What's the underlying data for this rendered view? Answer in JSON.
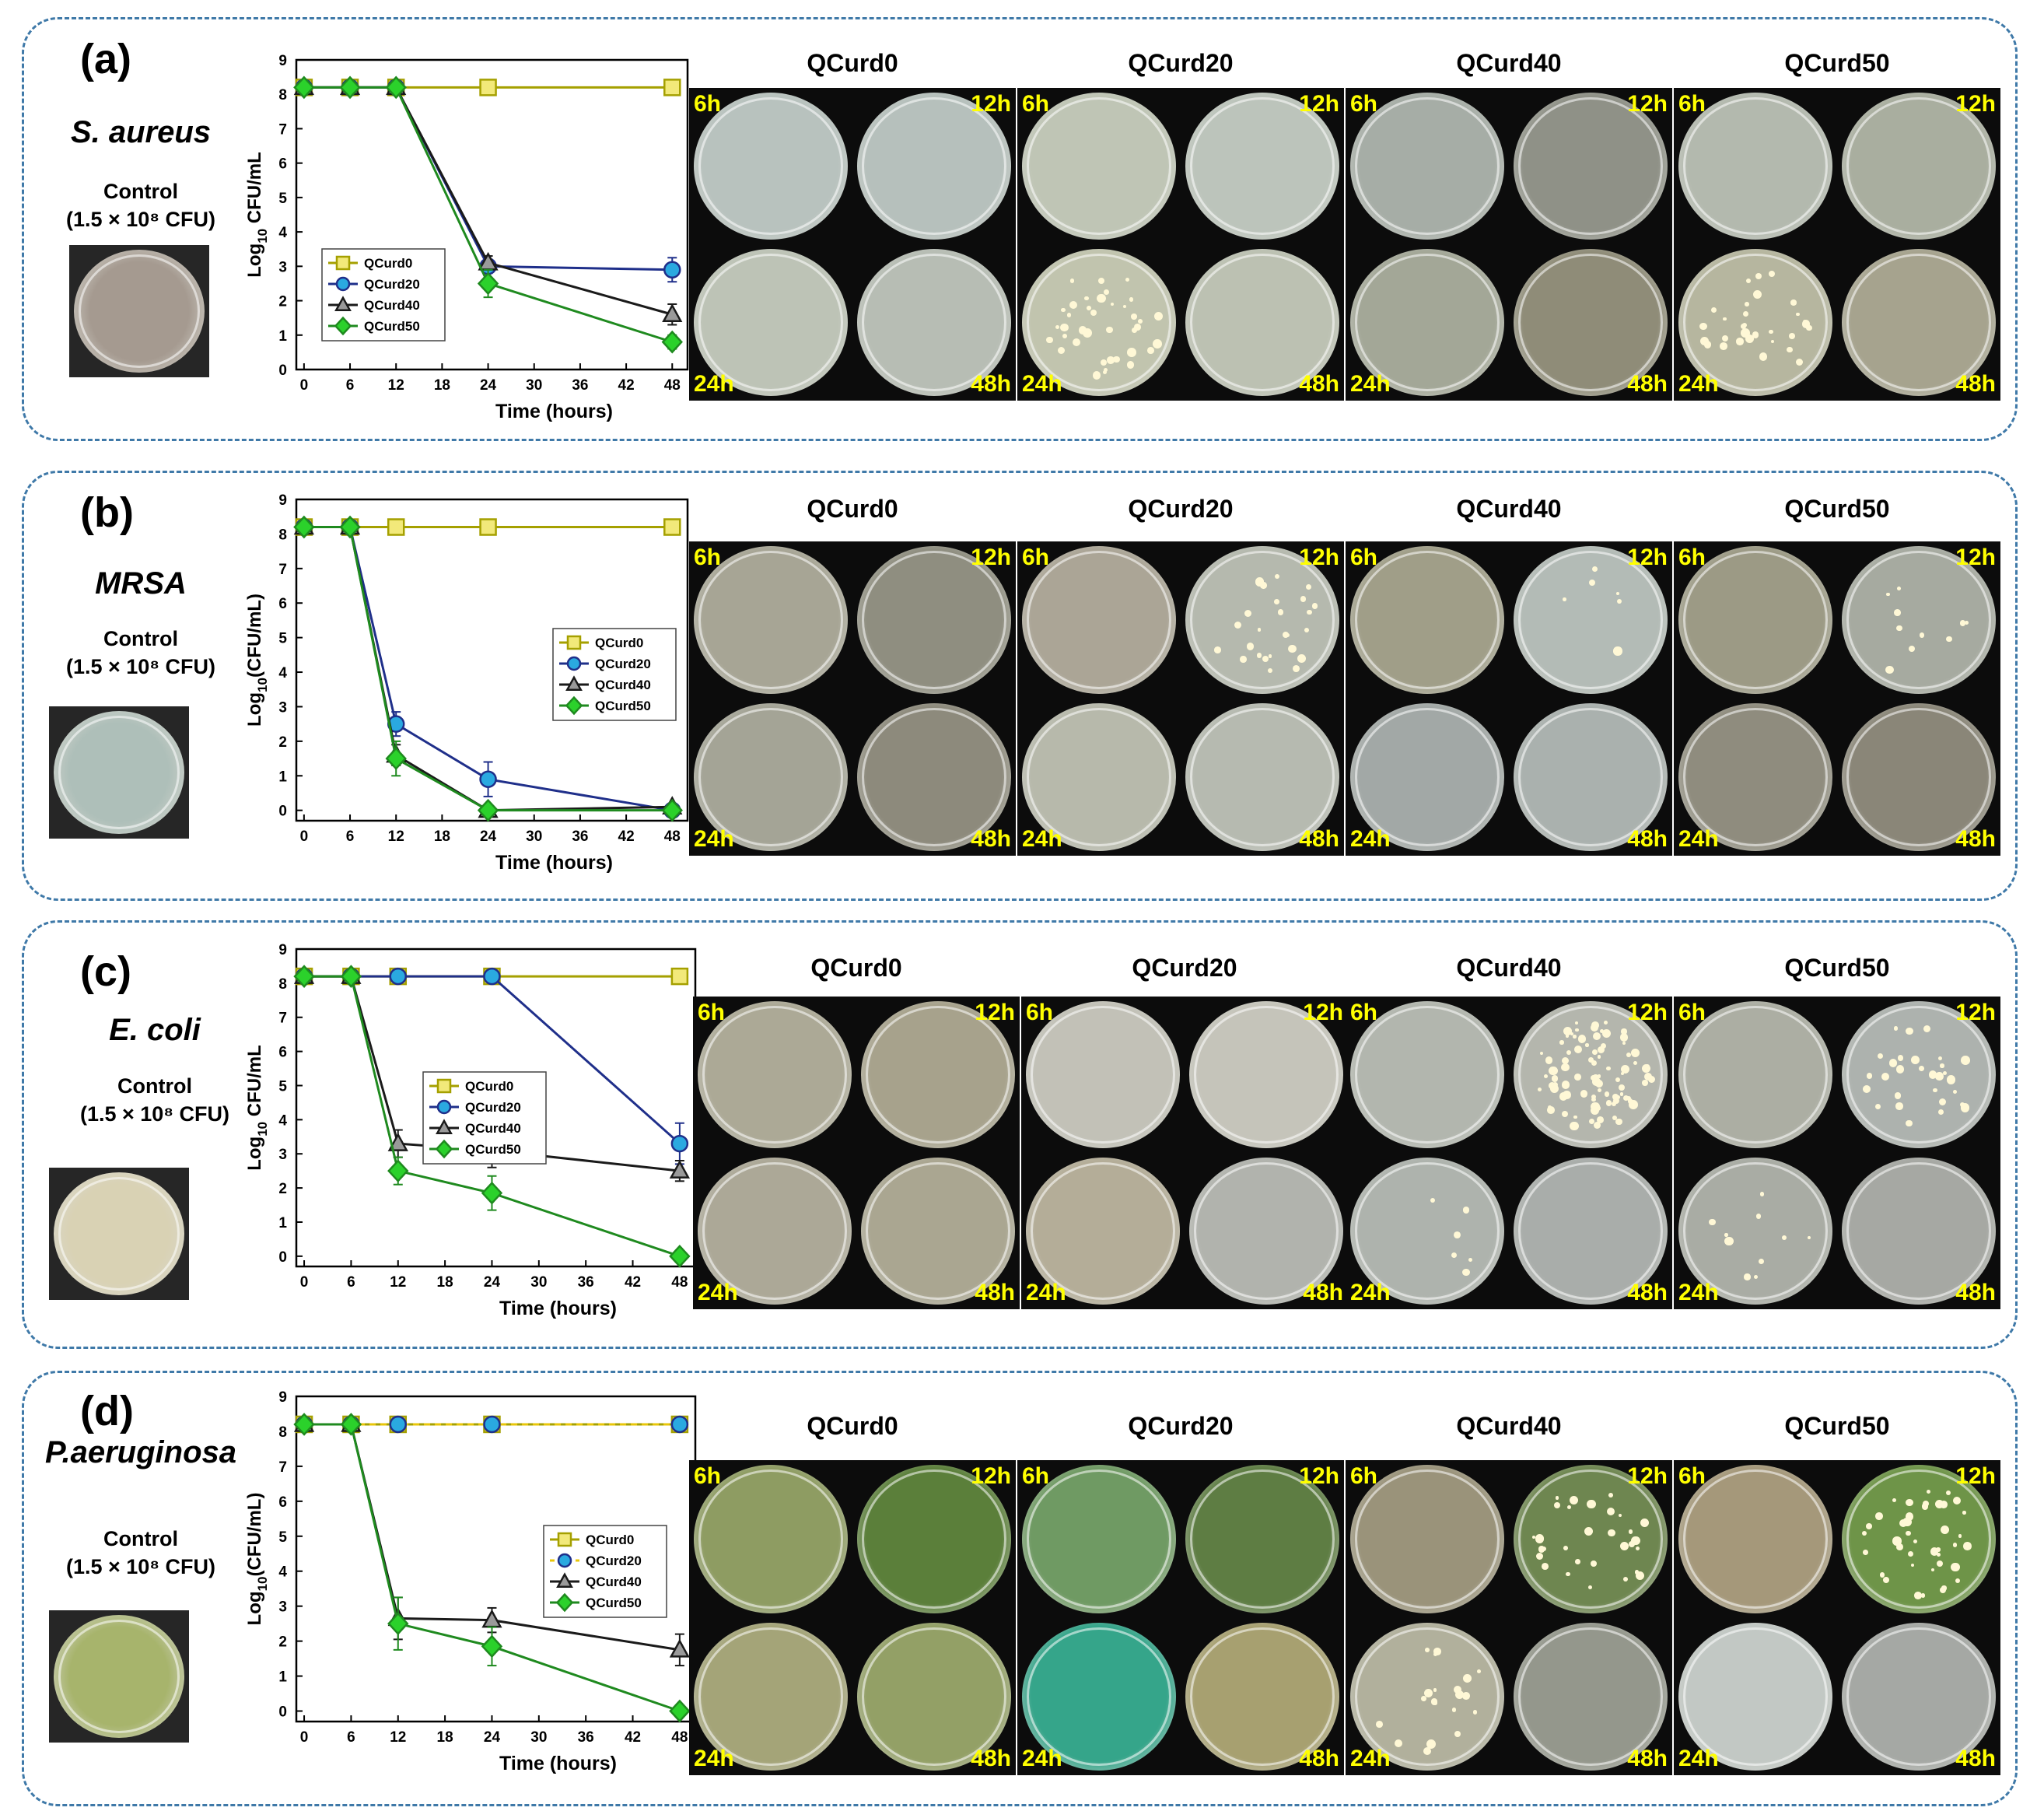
{
  "panels": [
    {
      "letter": "(a)",
      "organism": "S. aureus",
      "control_line1": "Control",
      "control_line2": "(1.5 × 10⁸ CFU)",
      "control_color": "#a59a90",
      "grid_titles": [
        "QCurd0",
        "QCurd20",
        "QCurd40",
        "QCurd50"
      ],
      "time_labels": [
        "6h",
        "12h",
        "24h",
        "48h"
      ],
      "plate_colors": [
        [
          "#b8c2be",
          "#b6c0bc",
          "#bdc3b6",
          "#b7bdb4"
        ],
        [
          "#bfc5b5",
          "#bcc4bb",
          "#c1c4ae",
          "#bcc1b2"
        ],
        [
          "#a6ada6",
          "#8f9187",
          "#a3a797",
          "#8f8c78"
        ],
        [
          "#b3b9ae",
          "#a9ae9f",
          "#b6b69f",
          "#a6a38e"
        ]
      ],
      "plate_spots": [
        [
          0,
          0,
          0,
          0
        ],
        [
          0,
          0,
          40,
          0
        ],
        [
          0,
          0,
          0,
          0
        ],
        [
          0,
          0,
          30,
          0
        ]
      ]
    },
    {
      "letter": "(b)",
      "organism": "MRSA",
      "control_line1": "Control",
      "control_line2": "(1.5 × 10⁸ CFU)",
      "control_color": "#aebfb9",
      "grid_titles": [
        "QCurd0",
        "QCurd20",
        "QCurd40",
        "QCurd50"
      ],
      "time_labels": [
        "6h",
        "12h",
        "24h",
        "48h"
      ],
      "plate_colors": [
        [
          "#a7a595",
          "#8f8e80",
          "#a4a496",
          "#8d8a7c"
        ],
        [
          "#aba596",
          "#b5b9ae",
          "#b7b9ab",
          "#b6bab0"
        ],
        [
          "#a09e88",
          "#b3bbb6",
          "#a2a8a6",
          "#aab1ae"
        ],
        [
          "#9c9a85",
          "#a6aaa0",
          "#8f8c7e",
          "#8a8678"
        ]
      ],
      "plate_spots": [
        [
          0,
          0,
          0,
          0
        ],
        [
          0,
          25,
          0,
          0
        ],
        [
          0,
          6,
          0,
          0
        ],
        [
          0,
          10,
          0,
          0
        ]
      ]
    },
    {
      "letter": "(c)",
      "organism": "E. coli",
      "control_line1": "Control",
      "control_line2": "(1.5 × 10⁸ CFU)",
      "control_color": "#d9d2b4",
      "grid_titles": [
        "QCurd0",
        "QCurd20",
        "QCurd40",
        "QCurd50"
      ],
      "time_labels": [
        "6h",
        "12h",
        "24h",
        "48h"
      ],
      "plate_colors": [
        [
          "#aca996",
          "#a7a28c",
          "#aca897",
          "#aaa691"
        ],
        [
          "#c2c1b7",
          "#c5c4ba",
          "#b4ad98",
          "#b1b3ad"
        ],
        [
          "#b2b6ae",
          "#b4b6ad",
          "#aeb3ad",
          "#a9adaa"
        ],
        [
          "#acaea3",
          "#adb2ae",
          "#a9aca4",
          "#a6a8a3"
        ]
      ],
      "plate_spots": [
        [
          0,
          0,
          0,
          0
        ],
        [
          0,
          0,
          0,
          0
        ],
        [
          0,
          90,
          6,
          0
        ],
        [
          0,
          30,
          10,
          0
        ]
      ]
    },
    {
      "letter": "(d)",
      "organism": "P.aeruginosa",
      "control_line1": "Control",
      "control_line2": "(1.5 × 10⁸ CFU)",
      "control_color": "#a7b46c",
      "grid_titles": [
        "QCurd0",
        "QCurd20",
        "QCurd40",
        "QCurd50"
      ],
      "time_labels": [
        "6h",
        "12h",
        "24h",
        "48h"
      ],
      "plate_colors": [
        [
          "#8e9c62",
          "#5b7f3a",
          "#a4a478",
          "#93a066"
        ],
        [
          "#6f9a63",
          "#5e7d43",
          "#35a58a",
          "#a7a070"
        ],
        [
          "#9a937a",
          "#6e8650",
          "#b1b09c",
          "#94978c"
        ],
        [
          "#a5987a",
          "#6e9448",
          "#c2c8c4",
          "#a5a8a4"
        ]
      ],
      "plate_spots": [
        [
          0,
          0,
          0,
          0
        ],
        [
          0,
          0,
          0,
          0
        ],
        [
          0,
          30,
          20,
          0
        ],
        [
          0,
          40,
          0,
          0
        ]
      ]
    }
  ],
  "chart_data": [
    {
      "type": "line",
      "xlabel": "Time (hours)",
      "ylabel_main": "Log",
      "ylabel_sub": "10",
      "ylabel_rest": " CFU/mL",
      "x": [
        0,
        6,
        12,
        24,
        48
      ],
      "xticks": [
        0,
        6,
        12,
        18,
        24,
        30,
        36,
        42,
        48
      ],
      "yticks": [
        0,
        1,
        2,
        3,
        4,
        5,
        6,
        7,
        8,
        9
      ],
      "xlim": [
        -1,
        50
      ],
      "ylim": [
        0,
        9
      ],
      "legend_position": "center-left",
      "series": [
        {
          "name": "QCurd0",
          "values": [
            8.2,
            8.2,
            8.2,
            8.2,
            8.2
          ],
          "err": [
            0,
            0,
            0,
            0,
            0
          ],
          "color": "#a5a000",
          "fill": "#f2e97a",
          "marker": "square",
          "dash": ""
        },
        {
          "name": "QCurd20",
          "values": [
            8.2,
            8.2,
            8.2,
            3.0,
            2.9
          ],
          "err": [
            0.1,
            0.1,
            0.1,
            0.2,
            0.35
          ],
          "color": "#1f2f8a",
          "fill": "#2aa9e0",
          "marker": "circle",
          "dash": ""
        },
        {
          "name": "QCurd40",
          "values": [
            8.2,
            8.2,
            8.2,
            3.1,
            1.6
          ],
          "err": [
            0.1,
            0.1,
            0.1,
            0.2,
            0.3
          ],
          "color": "#1a1a1a",
          "fill": "#9a9a9a",
          "marker": "triangle",
          "dash": ""
        },
        {
          "name": "QCurd50",
          "values": [
            8.2,
            8.2,
            8.2,
            2.5,
            0.8
          ],
          "err": [
            0.1,
            0.1,
            0.1,
            0.4,
            0.2
          ],
          "color": "#1f8a1f",
          "fill": "#2bd12b",
          "marker": "diamond",
          "dash": ""
        }
      ]
    },
    {
      "type": "line",
      "xlabel": "Time (hours)",
      "ylabel_main": "Log",
      "ylabel_sub": "10",
      "ylabel_rest": "(CFU/mL)",
      "x": [
        0,
        6,
        12,
        24,
        48
      ],
      "xticks": [
        0,
        6,
        12,
        18,
        24,
        30,
        36,
        42,
        48
      ],
      "yticks": [
        0,
        1,
        2,
        3,
        4,
        5,
        6,
        7,
        8,
        9
      ],
      "xlim": [
        -1,
        50
      ],
      "ylim": [
        -0.3,
        9
      ],
      "legend_position": "center-right",
      "series": [
        {
          "name": "QCurd0",
          "values": [
            8.2,
            8.2,
            8.2,
            8.2,
            8.2
          ],
          "err": [
            0,
            0,
            0,
            0,
            0
          ],
          "color": "#a5a000",
          "fill": "#f2e97a",
          "marker": "square",
          "dash": ""
        },
        {
          "name": "QCurd20",
          "values": [
            8.2,
            8.2,
            2.5,
            0.9,
            0.0
          ],
          "err": [
            0.1,
            0.1,
            0.35,
            0.5,
            0.05
          ],
          "color": "#1f2f8a",
          "fill": "#2aa9e0",
          "marker": "circle",
          "dash": ""
        },
        {
          "name": "QCurd40",
          "values": [
            8.2,
            8.2,
            1.6,
            0.0,
            0.1
          ],
          "err": [
            0.1,
            0.1,
            0.3,
            0.05,
            0.05
          ],
          "color": "#1a1a1a",
          "fill": "#9a9a9a",
          "marker": "triangle",
          "dash": ""
        },
        {
          "name": "QCurd50",
          "values": [
            8.2,
            8.2,
            1.5,
            0.0,
            0.0
          ],
          "err": [
            0.1,
            0.1,
            0.5,
            0.05,
            0.05
          ],
          "color": "#1f8a1f",
          "fill": "#2bd12b",
          "marker": "diamond",
          "dash": ""
        }
      ]
    },
    {
      "type": "line",
      "xlabel": "Time (hours)",
      "ylabel_main": "Log",
      "ylabel_sub": "10",
      "ylabel_rest": " CFU/mL",
      "x": [
        0,
        6,
        12,
        24,
        48
      ],
      "xticks": [
        0,
        6,
        12,
        18,
        24,
        30,
        36,
        42,
        48
      ],
      "yticks": [
        0,
        1,
        2,
        3,
        4,
        5,
        6,
        7,
        8,
        9
      ],
      "xlim": [
        -1,
        50
      ],
      "ylim": [
        -0.3,
        9
      ],
      "legend_position": "center",
      "series": [
        {
          "name": "QCurd0",
          "values": [
            8.2,
            8.2,
            8.2,
            8.2,
            8.2
          ],
          "err": [
            0,
            0,
            0,
            0,
            0
          ],
          "color": "#a5a000",
          "fill": "#f2e97a",
          "marker": "square",
          "dash": ""
        },
        {
          "name": "QCurd20",
          "values": [
            8.2,
            8.2,
            8.2,
            8.2,
            3.3
          ],
          "err": [
            0.1,
            0.1,
            0.1,
            0.1,
            0.6
          ],
          "color": "#1f2f8a",
          "fill": "#2aa9e0",
          "marker": "circle",
          "dash": ""
        },
        {
          "name": "QCurd40",
          "values": [
            8.2,
            8.2,
            3.3,
            3.1,
            2.5
          ],
          "err": [
            0.1,
            0.1,
            0.4,
            0.5,
            0.3
          ],
          "color": "#1a1a1a",
          "fill": "#9a9a9a",
          "marker": "triangle",
          "dash": ""
        },
        {
          "name": "QCurd50",
          "values": [
            8.2,
            8.2,
            2.5,
            1.85,
            0.0
          ],
          "err": [
            0.1,
            0.1,
            0.4,
            0.5,
            0.05
          ],
          "color": "#1f8a1f",
          "fill": "#2bd12b",
          "marker": "diamond",
          "dash": ""
        }
      ]
    },
    {
      "type": "line",
      "xlabel": "Time (hours)",
      "ylabel_main": "Log",
      "ylabel_sub": "10",
      "ylabel_rest": "(CFU/mL)",
      "x": [
        0,
        6,
        12,
        24,
        48
      ],
      "xticks": [
        0,
        6,
        12,
        18,
        24,
        30,
        36,
        42,
        48
      ],
      "yticks": [
        0,
        1,
        2,
        3,
        4,
        5,
        6,
        7,
        8,
        9
      ],
      "xlim": [
        -1,
        50
      ],
      "ylim": [
        -0.3,
        9
      ],
      "legend_position": "center-right",
      "series": [
        {
          "name": "QCurd0",
          "values": [
            8.2,
            8.2,
            8.2,
            8.2,
            8.2
          ],
          "err": [
            0,
            0,
            0,
            0,
            0
          ],
          "color": "#a5a000",
          "fill": "#f2e97a",
          "marker": "square",
          "dash": ""
        },
        {
          "name": "QCurd20",
          "values": [
            8.2,
            8.2,
            8.2,
            8.2,
            8.2
          ],
          "err": [
            0,
            0,
            0,
            0,
            0
          ],
          "color": "#1f2f8a",
          "fill": "#2aa9e0",
          "marker": "circle",
          "dash": "dashed"
        },
        {
          "name": "QCurd40",
          "values": [
            8.2,
            8.2,
            2.65,
            2.6,
            1.75
          ],
          "err": [
            0.1,
            0.1,
            0.6,
            0.35,
            0.45
          ],
          "color": "#1a1a1a",
          "fill": "#9a9a9a",
          "marker": "triangle",
          "dash": ""
        },
        {
          "name": "QCurd50",
          "values": [
            8.2,
            8.2,
            2.5,
            1.85,
            0.0
          ],
          "err": [
            0.1,
            0.1,
            0.75,
            0.55,
            0.05
          ],
          "color": "#1f8a1f",
          "fill": "#2bd12b",
          "marker": "diamond",
          "dash": ""
        }
      ]
    }
  ]
}
